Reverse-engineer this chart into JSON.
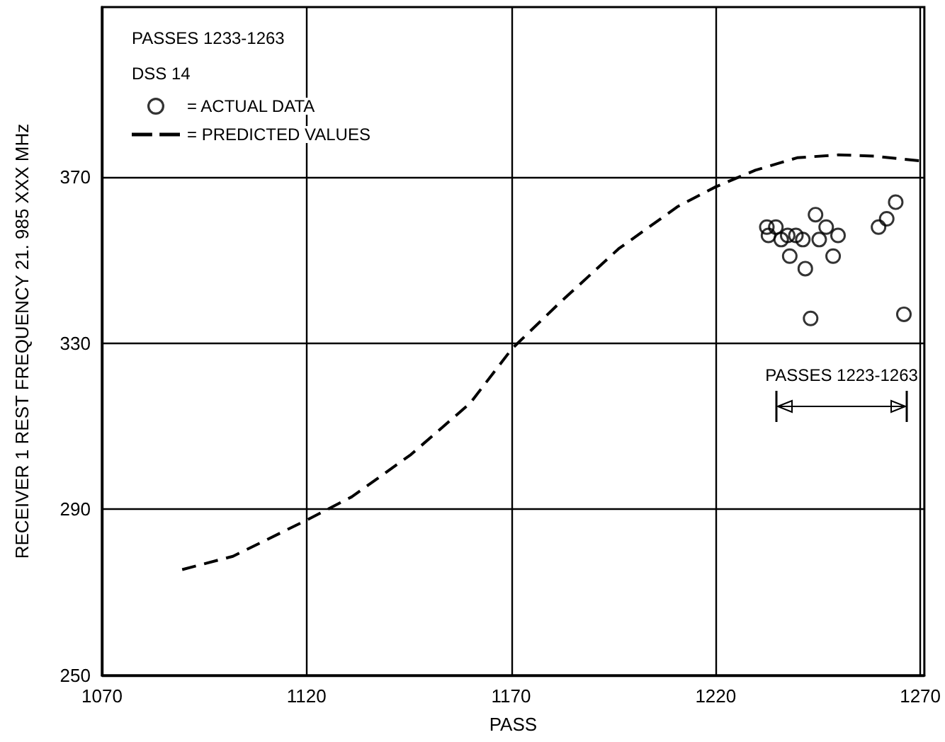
{
  "chart_data": {
    "type": "scatter",
    "title": "PASSES 1233-1263",
    "subtitle": "DSS 14",
    "xlabel": "PASS",
    "ylabel": "RECEIVER 1 REST FREQUENCY 21. 985 XXX MHz",
    "xlim": [
      1070,
      1271
    ],
    "xticks": [
      1070,
      1120,
      1170,
      1220,
      1270
    ],
    "ylim": [
      250,
      411
    ],
    "yticks": [
      250,
      290,
      330,
      370
    ],
    "grid": true,
    "legend": "top left",
    "annotations": [
      "PASSES 1223-1263"
    ],
    "series": [
      {
        "name": "= ACTUAL DATA",
        "marker": "circle",
        "color": "#000000",
        "x": [
          1232.5,
          1234.7,
          1232.9,
          1236,
          1237.6,
          1239.6,
          1238.1,
          1241.3,
          1241.9,
          1244.4,
          1243.2,
          1245.3,
          1247,
          1248.7,
          1249.9,
          1259.8,
          1261.8,
          1264,
          1266
        ],
        "values": [
          358,
          358,
          356,
          355,
          356,
          356,
          351,
          355,
          348,
          361,
          336,
          355,
          358,
          351,
          356,
          358,
          360,
          364,
          337
        ]
      },
      {
        "name": "= PREDICTED VALUES",
        "type": "line",
        "line_style": "dashed",
        "marker": "none",
        "color": "#000000",
        "x": [
          1089.6,
          1102,
          1120.4,
          1131,
          1145.5,
          1160,
          1170.2,
          1181.8,
          1196.3,
          1210.8,
          1220,
          1229.7,
          1239.9,
          1250,
          1258.8,
          1270.4
        ],
        "values": [
          275.5,
          278.7,
          287.6,
          293,
          303.2,
          315.6,
          328.7,
          339.7,
          352.8,
          363,
          367.7,
          371.7,
          374.7,
          375.4,
          375.1,
          373.9
        ]
      }
    ]
  }
}
